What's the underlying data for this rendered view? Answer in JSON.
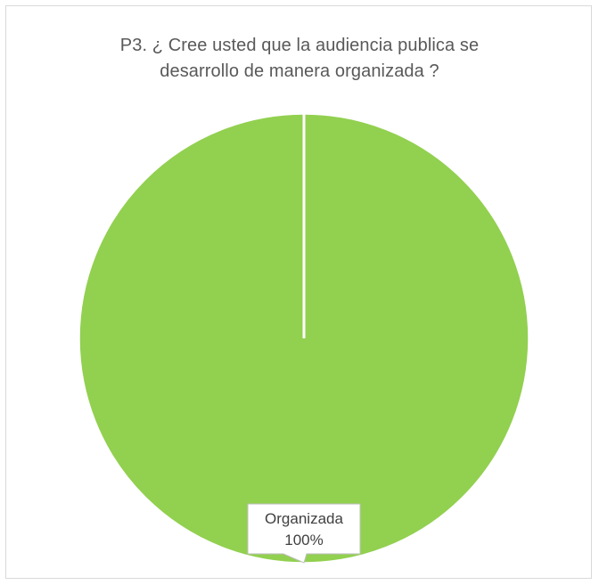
{
  "chart_data": {
    "type": "pie",
    "title_lines": [
      "P3. ¿ Cree usted que la audiencia publica se",
      "desarrollo de manera organizada ?"
    ],
    "categories": [
      "Organizada"
    ],
    "values": [
      100
    ],
    "data_labels": [
      {
        "category": "Organizada",
        "percent": "100%"
      }
    ],
    "colors": {
      "slice": "#92d050",
      "slice_border": "#ffffff",
      "title": "#595959",
      "label_text": "#404040",
      "label_box_border": "#bfbfbf"
    },
    "legend": "none"
  }
}
